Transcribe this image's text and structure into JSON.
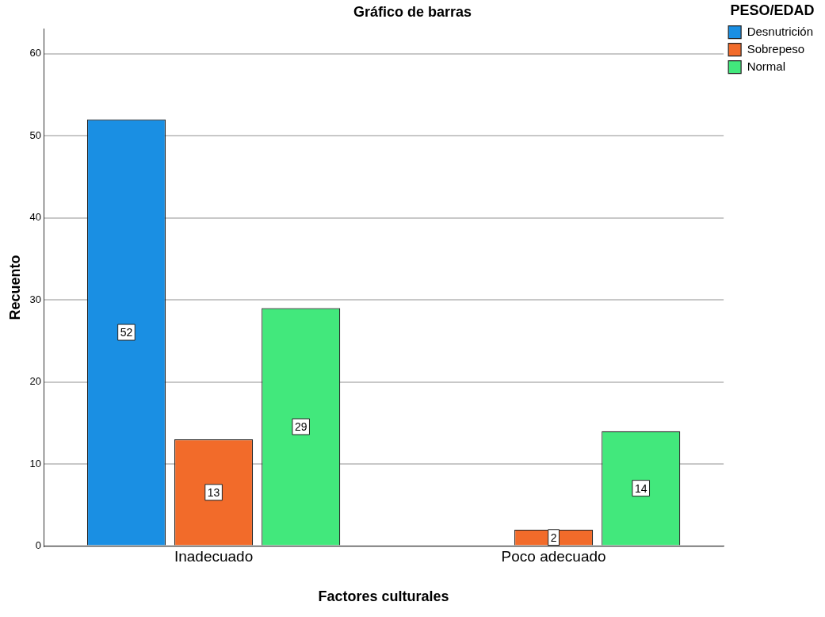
{
  "chart_data": {
    "type": "bar",
    "title": "Gráfico de barras",
    "xlabel": "Factores culturales",
    "ylabel": "Recuento",
    "legend_title": "PESO/EDAD",
    "categories": [
      "Inadecuado",
      "Poco adecuado"
    ],
    "series": [
      {
        "name": "Desnutrición",
        "color": "#1a8fe3",
        "values": [
          52,
          null
        ]
      },
      {
        "name": "Sobrepeso",
        "color": "#f26b2a",
        "values": [
          13,
          2
        ]
      },
      {
        "name": "Normal",
        "color": "#42e87c",
        "values": [
          29,
          14
        ]
      }
    ],
    "ylim": [
      0,
      63
    ],
    "yticks": [
      0,
      10,
      20,
      30,
      40,
      50,
      60
    ],
    "grid": "y",
    "legend": "top right",
    "data_labels": true
  }
}
